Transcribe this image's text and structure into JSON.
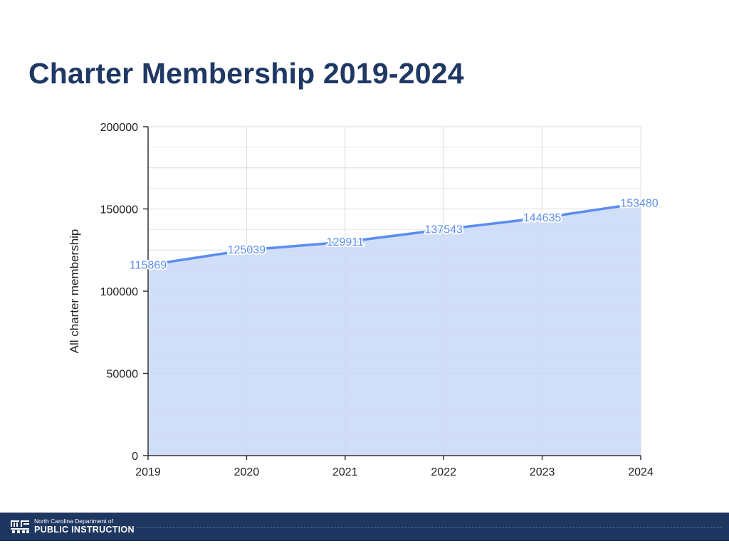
{
  "slide": {
    "title": "Charter Membership 2019-2024"
  },
  "footer": {
    "org_line1": "North Carolina Department of",
    "org_line2": "PUBLIC INSTRUCTION",
    "logo_icon": "ncdpi-logo-icon",
    "bar_color": "#1e3761"
  },
  "chart_data": {
    "type": "area",
    "title": "",
    "xlabel": "",
    "ylabel": "All charter membership",
    "categories": [
      "2019",
      "2020",
      "2021",
      "2022",
      "2023",
      "2024"
    ],
    "series": [
      {
        "values": [
          115869,
          125039,
          129911,
          137543,
          144635,
          153480
        ],
        "line_color": "#5b8def",
        "fill_color": "#c9d8f7"
      }
    ],
    "ylim": [
      0,
      200000
    ],
    "yticks": [
      "200000",
      "150000",
      "100000",
      "50000",
      "0"
    ],
    "grid": true,
    "data_labels": true,
    "legend": "none"
  }
}
